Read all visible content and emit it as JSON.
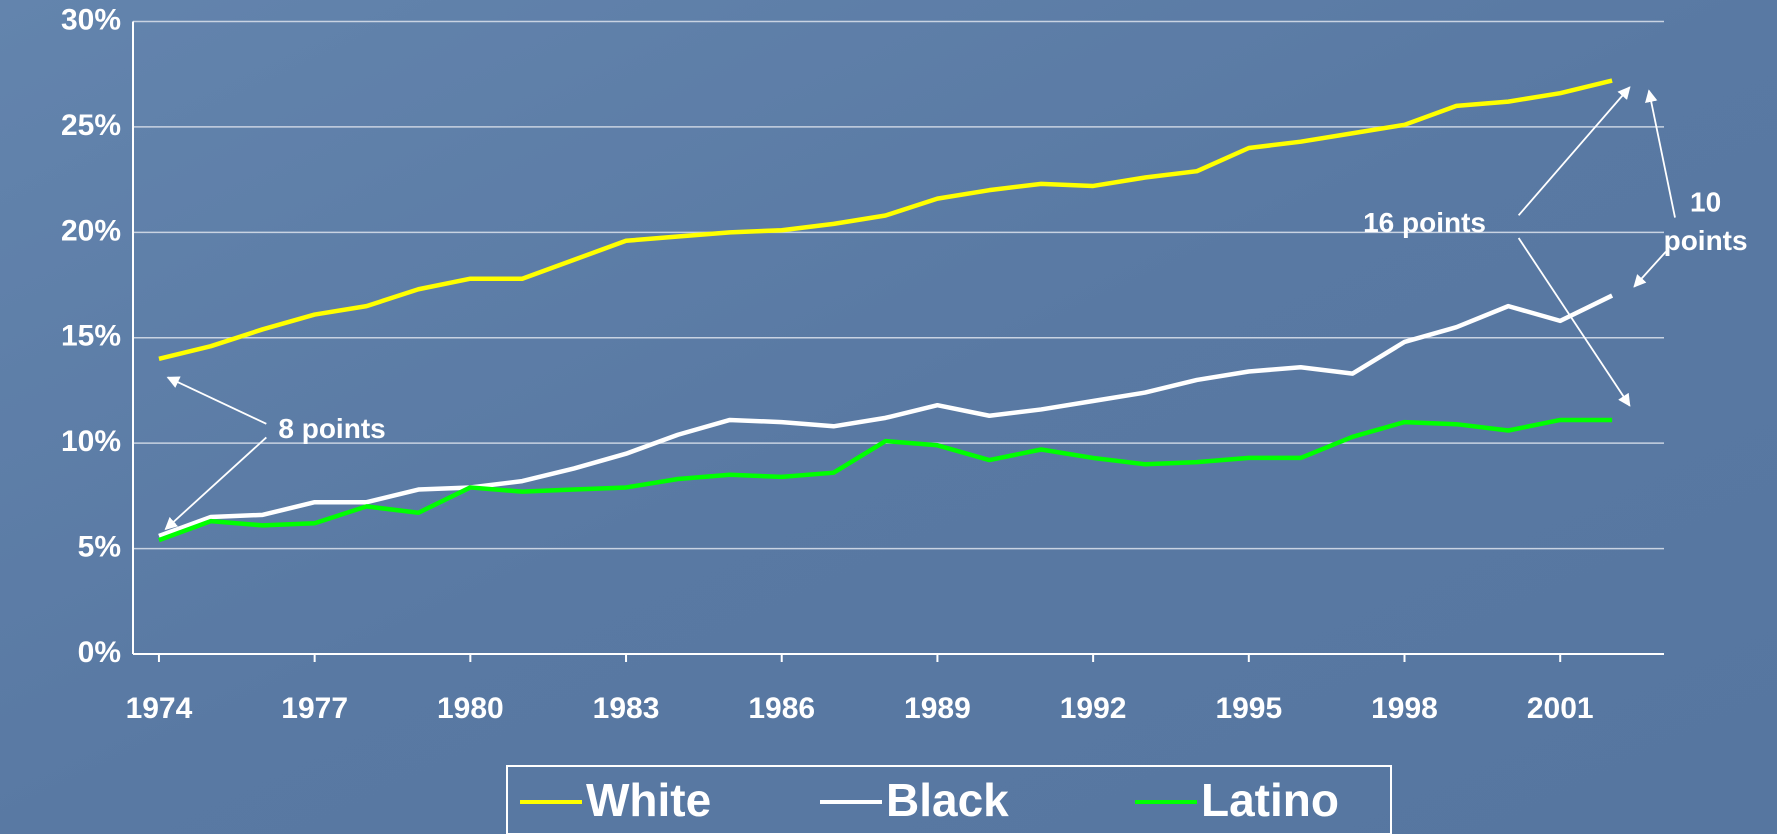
{
  "chart_data": {
    "type": "line",
    "x": [
      1974,
      1975,
      1976,
      1977,
      1978,
      1979,
      1980,
      1981,
      1982,
      1983,
      1984,
      1985,
      1986,
      1987,
      1988,
      1989,
      1990,
      1991,
      1992,
      1993,
      1994,
      1995,
      1996,
      1997,
      1998,
      1999,
      2000,
      2001,
      2002
    ],
    "series": [
      {
        "name": "White",
        "color": "#ffff00",
        "values": [
          14.0,
          14.6,
          15.4,
          16.1,
          16.5,
          17.3,
          17.8,
          17.8,
          18.7,
          19.6,
          19.8,
          20.0,
          20.1,
          20.4,
          20.8,
          21.6,
          22.0,
          22.3,
          22.2,
          22.6,
          22.9,
          24.0,
          24.3,
          24.7,
          25.1,
          26.0,
          26.2,
          26.6,
          27.2
        ]
      },
      {
        "name": "Black",
        "color": "#ffffff",
        "values": [
          5.6,
          6.5,
          6.6,
          7.2,
          7.2,
          7.8,
          7.9,
          8.2,
          8.8,
          9.5,
          10.4,
          11.1,
          11.0,
          10.8,
          11.2,
          11.8,
          11.3,
          11.6,
          12.0,
          12.4,
          13.0,
          13.4,
          13.6,
          13.3,
          14.8,
          15.5,
          16.5,
          15.8,
          17.0
        ]
      },
      {
        "name": "Latino",
        "color": "#00ff00",
        "values": [
          5.4,
          6.3,
          6.1,
          6.2,
          7.0,
          6.7,
          7.9,
          7.7,
          7.8,
          7.9,
          8.3,
          8.5,
          8.4,
          8.6,
          10.1,
          9.9,
          9.2,
          9.7,
          9.3,
          9.0,
          9.1,
          9.3,
          9.3,
          10.3,
          11.0,
          10.9,
          10.6,
          11.1,
          11.1
        ]
      }
    ],
    "xlim": [
      1973.5,
      2003.0
    ],
    "xticks": [
      1974,
      1977,
      1980,
      1983,
      1986,
      1989,
      1992,
      1995,
      1998,
      2001
    ],
    "ylim": [
      0,
      30
    ],
    "yticks": [
      {
        "value": 0,
        "label": "0%"
      },
      {
        "value": 5,
        "label": "5%"
      },
      {
        "value": 10,
        "label": "10%"
      },
      {
        "value": 15,
        "label": "15%"
      },
      {
        "value": 20,
        "label": "20%"
      },
      {
        "value": 25,
        "label": "25%"
      },
      {
        "value": 30,
        "label": "30%"
      }
    ],
    "grid": true,
    "annotations": [
      {
        "lines": [
          "8 points"
        ]
      },
      {
        "lines": [
          "16 points"
        ]
      },
      {
        "lines": [
          "10",
          "points"
        ]
      }
    ]
  }
}
